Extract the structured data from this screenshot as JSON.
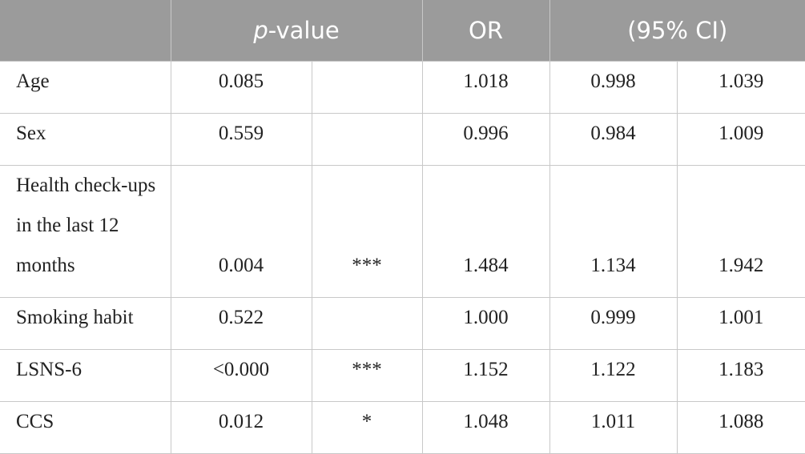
{
  "table": {
    "header": {
      "p_value": "p-value",
      "or": "OR",
      "ci": "(95% CI)"
    },
    "rows": [
      [
        "Age",
        "0.085",
        null,
        "1.018",
        "0.998",
        "1.039"
      ],
      [
        "Sex",
        "0.559",
        null,
        "0.996",
        "0.984",
        "1.009"
      ],
      [
        "Health check-ups in the last 12 months",
        "0.004",
        "***",
        "1.484",
        "1.134",
        "1.942"
      ],
      [
        "Smoking habit",
        "0.522",
        null,
        "1.000",
        "0.999",
        "1.001"
      ],
      [
        "LSNS-6",
        "<0.000",
        "***",
        "1.152",
        "1.122",
        "1.183"
      ],
      [
        "CCS",
        "0.012",
        "*",
        "1.048",
        "1.011",
        "1.088"
      ]
    ]
  }
}
